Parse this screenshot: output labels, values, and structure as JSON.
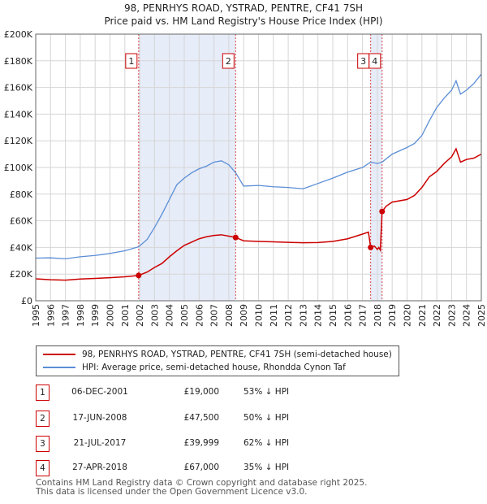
{
  "title_line1": "98, PENRHYS ROAD, YSTRAD, PENTRE, CF41 7SH",
  "title_line2": "Price paid vs. HM Land Registry's House Price Index (HPI)",
  "chart_data": {
    "type": "line",
    "xlim": [
      1995,
      2025
    ],
    "ylim": [
      0,
      200000
    ],
    "yticks": [
      0,
      20000,
      40000,
      60000,
      80000,
      100000,
      120000,
      140000,
      160000,
      180000,
      200000
    ],
    "ytick_labels": [
      "£0",
      "£20K",
      "£40K",
      "£60K",
      "£80K",
      "£100K",
      "£120K",
      "£140K",
      "£160K",
      "£180K",
      "£200K"
    ],
    "xticks": [
      1995,
      1996,
      1997,
      1998,
      1999,
      2000,
      2001,
      2002,
      2003,
      2004,
      2005,
      2006,
      2007,
      2008,
      2009,
      2010,
      2011,
      2012,
      2013,
      2014,
      2015,
      2016,
      2017,
      2018,
      2019,
      2020,
      2021,
      2022,
      2023,
      2024,
      2025
    ],
    "xtick_labels": [
      "1995",
      "1996",
      "1997",
      "1998",
      "1999",
      "2000",
      "2001",
      "2002",
      "2003",
      "2004",
      "2005",
      "2006",
      "2007",
      "2008",
      "2009",
      "2010",
      "2011",
      "2012",
      "2013",
      "2014",
      "2015",
      "2016",
      "2017",
      "2018",
      "2019",
      "2020",
      "2021",
      "2022",
      "2023",
      "2024",
      "2025"
    ],
    "grid": true,
    "shaded_ranges": [
      [
        2001.93,
        2008.46
      ],
      [
        2017.55,
        2018.32
      ]
    ],
    "series": [
      {
        "name": "98, PENRHYS ROAD, YSTRAD, PENTRE, CF41 7SH (semi-detached house)",
        "color": "#cc0000",
        "x": [
          1995.0,
          1996.0,
          1997.0,
          1998.0,
          1999.0,
          2000.0,
          2001.0,
          2001.93,
          2002.5,
          2003.0,
          2003.5,
          2004.0,
          2004.5,
          2005.0,
          2005.5,
          2006.0,
          2006.5,
          2007.0,
          2007.5,
          2008.0,
          2008.46,
          2009.0,
          2010.0,
          2011.0,
          2012.0,
          2013.0,
          2014.0,
          2015.0,
          2016.0,
          2017.0,
          2017.4,
          2017.55,
          2017.8,
          2018.0,
          2018.1,
          2018.2,
          2018.32,
          2018.6,
          2019.0,
          2020.0,
          2020.5,
          2021.0,
          2021.5,
          2022.0,
          2022.5,
          2023.0,
          2023.3,
          2023.6,
          2024.0,
          2024.5,
          2025.0
        ],
        "y": [
          16500,
          15800,
          15500,
          16300,
          16800,
          17300,
          18000,
          19000,
          21500,
          25000,
          28000,
          33000,
          37500,
          41500,
          44000,
          46500,
          48000,
          49000,
          49500,
          48500,
          47500,
          45000,
          44500,
          44200,
          43800,
          43500,
          43700,
          44500,
          46500,
          50000,
          51500,
          39999,
          41000,
          38500,
          40000,
          38000,
          67000,
          71000,
          74000,
          76000,
          79000,
          85000,
          93000,
          97000,
          103000,
          108000,
          114000,
          104000,
          106000,
          107000,
          110000
        ]
      },
      {
        "name": "HPI: Average price, semi-detached house, Rhondda Cynon Taf",
        "color": "#5b8ed6",
        "x": [
          1995.0,
          1996.0,
          1997.0,
          1998.0,
          1999.0,
          2000.0,
          2001.0,
          2001.93,
          2002.5,
          2003.0,
          2003.5,
          2004.0,
          2004.5,
          2005.0,
          2005.5,
          2006.0,
          2006.5,
          2007.0,
          2007.5,
          2008.0,
          2008.46,
          2009.0,
          2010.0,
          2011.0,
          2012.0,
          2013.0,
          2014.0,
          2015.0,
          2016.0,
          2017.0,
          2017.55,
          2018.0,
          2018.32,
          2019.0,
          2020.0,
          2020.5,
          2021.0,
          2021.5,
          2022.0,
          2022.5,
          2023.0,
          2023.3,
          2023.6,
          2024.0,
          2024.5,
          2025.0
        ],
        "y": [
          32000,
          32200,
          31500,
          33000,
          34000,
          35500,
          37500,
          40500,
          46000,
          55000,
          65000,
          76000,
          87000,
          92000,
          96000,
          99000,
          101000,
          104000,
          105000,
          102000,
          96000,
          86000,
          86500,
          85500,
          85000,
          84000,
          88000,
          92000,
          96500,
          100000,
          104000,
          103000,
          104000,
          110000,
          115000,
          118000,
          124000,
          135000,
          145000,
          152000,
          158000,
          165000,
          155000,
          158000,
          163000,
          170000
        ]
      }
    ],
    "transactions": [
      {
        "num": "1",
        "x": 2001.93,
        "price": 19000
      },
      {
        "num": "2",
        "x": 2008.46,
        "price": 47500
      },
      {
        "num": "3",
        "x": 2017.55,
        "price": 39999
      },
      {
        "num": "4",
        "x": 2018.32,
        "price": 67000
      }
    ]
  },
  "legend": {
    "red_label": "98, PENRHYS ROAD, YSTRAD, PENTRE, CF41 7SH (semi-detached house)",
    "blue_label": "HPI: Average price, semi-detached house, Rhondda Cynon Taf"
  },
  "table": [
    {
      "num": "1",
      "date": "06-DEC-2001",
      "price": "£19,000",
      "hpi": "53% ↓ HPI"
    },
    {
      "num": "2",
      "date": "17-JUN-2008",
      "price": "£47,500",
      "hpi": "50% ↓ HPI"
    },
    {
      "num": "3",
      "date": "21-JUL-2017",
      "price": "£39,999",
      "hpi": "62% ↓ HPI"
    },
    {
      "num": "4",
      "date": "27-APR-2018",
      "price": "£67,000",
      "hpi": "35% ↓ HPI"
    }
  ],
  "footer_line1": "Contains HM Land Registry data © Crown copyright and database right 2025.",
  "footer_line2": "This data is licensed under the Open Government Licence v3.0."
}
